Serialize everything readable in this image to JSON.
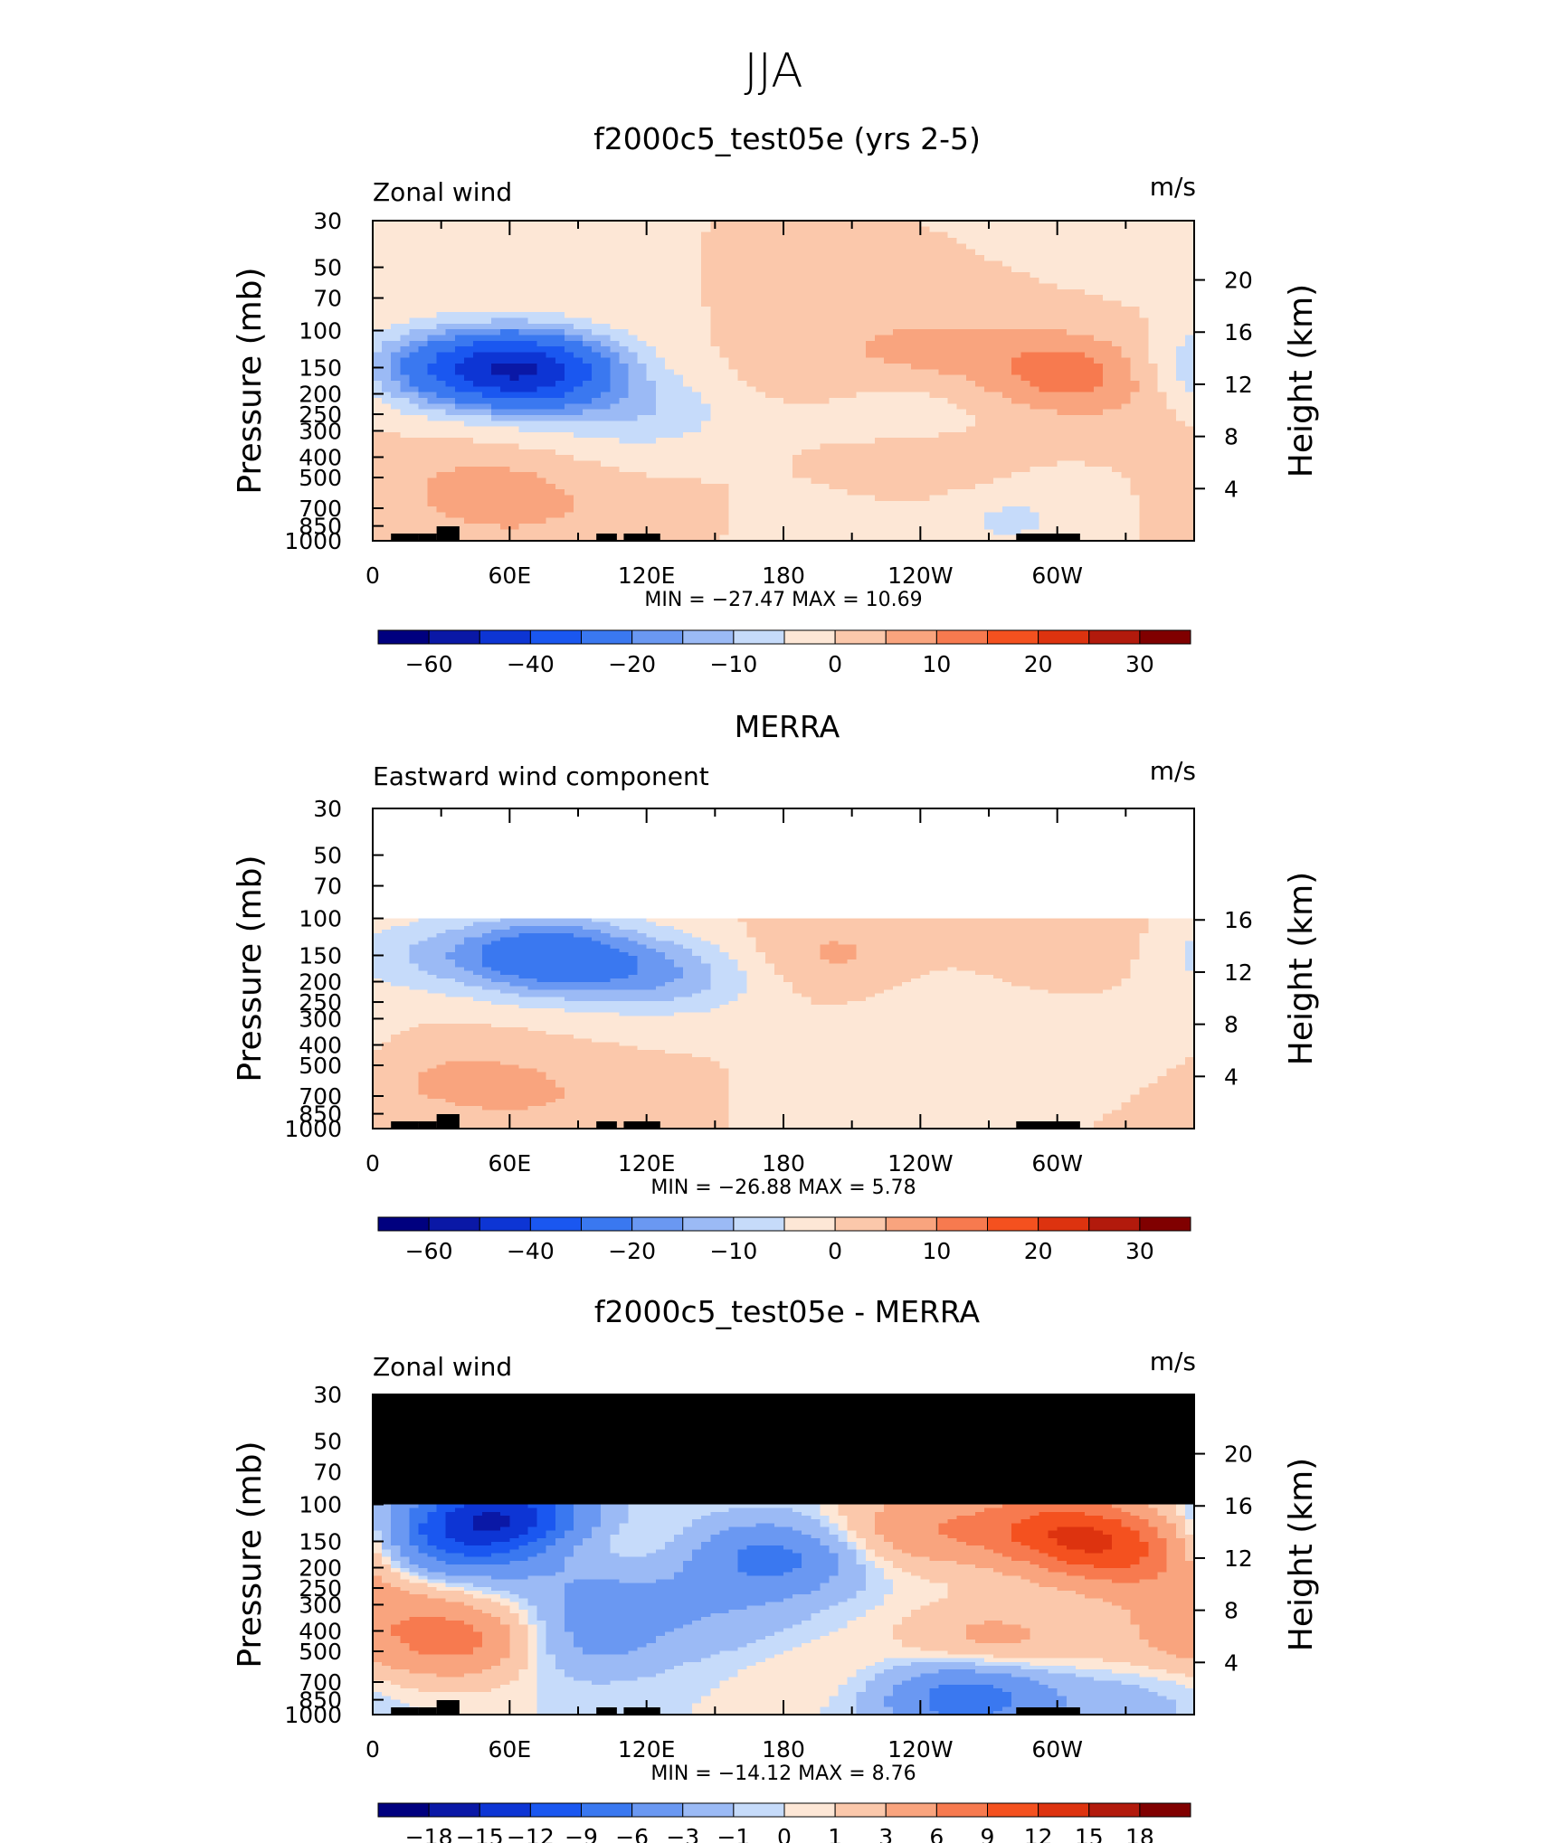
{
  "suptitle": "JJA",
  "chart_data": [
    {
      "type": "heatmap",
      "title": "f2000c5_test05e (yrs 2-5)",
      "left_label": "Zonal wind",
      "units": "m/s",
      "ylabel": "Pressure (mb)",
      "ylabel_right": "Height (km)",
      "x_ticks": [
        "0",
        "60E",
        "120E",
        "180",
        "120W",
        "60W"
      ],
      "p_ticks": [
        "30",
        "50",
        "70",
        "100",
        "150",
        "200",
        "250",
        "300",
        "400",
        "500",
        "700",
        "850",
        "1000"
      ],
      "h_ticks": [
        "20",
        "16",
        "12",
        "8",
        "4"
      ],
      "min_max": "MIN = −27.47   MAX =   10.69",
      "levels": [
        "−70",
        "−60",
        "−50",
        "−40",
        "−30",
        "−20",
        "−15",
        "−10",
        "−5",
        "0",
        "5",
        "10",
        "15",
        "20",
        "25",
        "30",
        "35"
      ],
      "colorbar_labels": [
        "−60",
        "−40",
        "−20",
        "−10",
        "0",
        "10",
        "20",
        "30"
      ],
      "missing_above_mb": null,
      "features": [
        {
          "lon": 0,
          "p": 40,
          "value": -5
        },
        {
          "lon": 25,
          "p": 150,
          "value": -15
        },
        {
          "lon": 60,
          "p": 150,
          "value": -27
        },
        {
          "lon": 75,
          "p": 160,
          "value": -22
        },
        {
          "lon": 120,
          "p": 250,
          "value": -8
        },
        {
          "lon": 190,
          "p": 150,
          "value": 2
        },
        {
          "lon": 240,
          "p": 120,
          "value": 6
        },
        {
          "lon": 300,
          "p": 150,
          "value": 10.7
        },
        {
          "lon": 320,
          "p": 200,
          "value": 4
        },
        {
          "lon": 235,
          "p": 250,
          "value": -3
        },
        {
          "lon": 245,
          "p": 450,
          "value": 4
        },
        {
          "lon": 60,
          "p": 650,
          "value": 7
        },
        {
          "lon": 30,
          "p": 500,
          "value": 3
        },
        {
          "lon": 110,
          "p": 750,
          "value": 1
        },
        {
          "lon": 280,
          "p": 780,
          "value": -6
        },
        {
          "lon": 200,
          "p": 900,
          "value": -3
        },
        {
          "lon": 160,
          "p": 900,
          "value": 0.5
        },
        {
          "lon": 340,
          "p": 900,
          "value": 0.5
        }
      ]
    },
    {
      "type": "heatmap",
      "title": "MERRA",
      "left_label": "Eastward wind component",
      "units": "m/s",
      "ylabel": "Pressure (mb)",
      "ylabel_right": "Height (km)",
      "x_ticks": [
        "0",
        "60E",
        "120E",
        "180",
        "120W",
        "60W"
      ],
      "p_ticks": [
        "30",
        "50",
        "70",
        "100",
        "150",
        "200",
        "250",
        "300",
        "400",
        "500",
        "700",
        "850",
        "1000"
      ],
      "h_ticks": [
        "16",
        "12",
        "8",
        "4"
      ],
      "min_max": "MIN = −26.88   MAX =    5.78",
      "levels": [
        "−70",
        "−60",
        "−50",
        "−40",
        "−30",
        "−20",
        "−15",
        "−10",
        "−5",
        "0",
        "5",
        "10",
        "15",
        "20",
        "25",
        "30",
        "35"
      ],
      "colorbar_labels": [
        "−60",
        "−40",
        "−20",
        "−10",
        "0",
        "10",
        "20",
        "30"
      ],
      "missing_above_mb": 100,
      "features": [
        {
          "lon": 20,
          "p": 150,
          "value": -8
        },
        {
          "lon": 75,
          "p": 150,
          "value": -26
        },
        {
          "lon": 120,
          "p": 180,
          "value": -12
        },
        {
          "lon": 150,
          "p": 200,
          "value": -4
        },
        {
          "lon": 200,
          "p": 150,
          "value": 6
        },
        {
          "lon": 300,
          "p": 130,
          "value": 5
        },
        {
          "lon": 250,
          "p": 250,
          "value": -3
        },
        {
          "lon": 300,
          "p": 500,
          "value": -4
        },
        {
          "lon": 340,
          "p": 400,
          "value": -3
        },
        {
          "lon": 60,
          "p": 650,
          "value": 5.5
        },
        {
          "lon": 25,
          "p": 500,
          "value": 3
        },
        {
          "lon": 110,
          "p": 800,
          "value": 2
        },
        {
          "lon": 200,
          "p": 800,
          "value": -2
        },
        {
          "lon": 0,
          "p": 700,
          "value": 2
        }
      ]
    },
    {
      "type": "heatmap",
      "title": "f2000c5_test05e - MERRA",
      "left_label": "Zonal wind",
      "units": "m/s",
      "ylabel": "Pressure (mb)",
      "ylabel_right": "Height (km)",
      "x_ticks": [
        "0",
        "60E",
        "120E",
        "180",
        "120W",
        "60W"
      ],
      "p_ticks": [
        "30",
        "50",
        "70",
        "100",
        "150",
        "200",
        "250",
        "300",
        "400",
        "500",
        "700",
        "850",
        "1000"
      ],
      "h_ticks": [
        "20",
        "16",
        "12",
        "8",
        "4"
      ],
      "min_max": "MIN = −14.12   MAX =    8.76",
      "levels": [
        "−21",
        "−18",
        "−15",
        "−12",
        "−9",
        "−6",
        "−3",
        "−1",
        "0",
        "1",
        "3",
        "6",
        "9",
        "12",
        "15",
        "18",
        "21"
      ],
      "colorbar_labels": [
        "−18",
        "−15",
        "−12",
        "−9",
        "−6",
        "−3",
        "−1",
        "0",
        "1",
        "3",
        "6",
        "9",
        "12",
        "15",
        "18"
      ],
      "missing_above_mb": 100,
      "features": [
        {
          "lon": 35,
          "p": 150,
          "value": -8
        },
        {
          "lon": 60,
          "p": 110,
          "value": -12
        },
        {
          "lon": 100,
          "p": 250,
          "value": -3
        },
        {
          "lon": 175,
          "p": 180,
          "value": -7
        },
        {
          "lon": 150,
          "p": 350,
          "value": -2
        },
        {
          "lon": 90,
          "p": 450,
          "value": -4
        },
        {
          "lon": 100,
          "p": 150,
          "value": 2
        },
        {
          "lon": 240,
          "p": 130,
          "value": 5
        },
        {
          "lon": 300,
          "p": 130,
          "value": 8.7
        },
        {
          "lon": 330,
          "p": 170,
          "value": 8
        },
        {
          "lon": 270,
          "p": 450,
          "value": 4
        },
        {
          "lon": 40,
          "p": 450,
          "value": 7
        },
        {
          "lon": 5,
          "p": 300,
          "value": 3
        },
        {
          "lon": 260,
          "p": 820,
          "value": -8
        },
        {
          "lon": 200,
          "p": 650,
          "value": 1
        },
        {
          "lon": 330,
          "p": 800,
          "value": -2
        },
        {
          "lon": 340,
          "p": 500,
          "value": 2
        }
      ]
    }
  ]
}
